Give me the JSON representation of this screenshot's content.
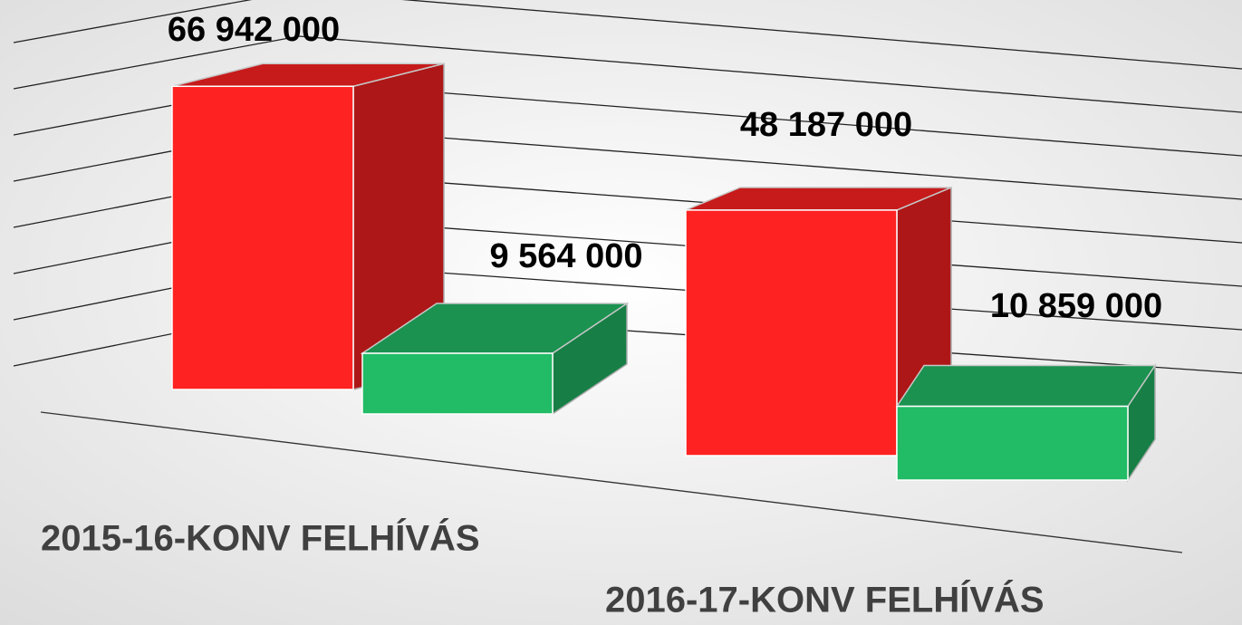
{
  "chart_data": {
    "type": "bar3d",
    "categories": [
      "2015-16-KONV FELHÍVÁS",
      "2016-17-KONV FELHÍVÁS"
    ],
    "series": [
      {
        "color": "#ff2222",
        "values": [
          66942000,
          48187000
        ],
        "value_labels": [
          "66 942 000",
          "48 187 000"
        ]
      },
      {
        "color": "#22bb66",
        "values": [
          9564000,
          10859000
        ],
        "value_labels": [
          "9 564 000",
          "10 859 000"
        ]
      }
    ],
    "ylim": [
      0,
      80000000
    ],
    "yticks": [
      0,
      10000000,
      20000000,
      30000000,
      40000000,
      50000000,
      60000000,
      70000000,
      80000000
    ],
    "grid": true
  }
}
